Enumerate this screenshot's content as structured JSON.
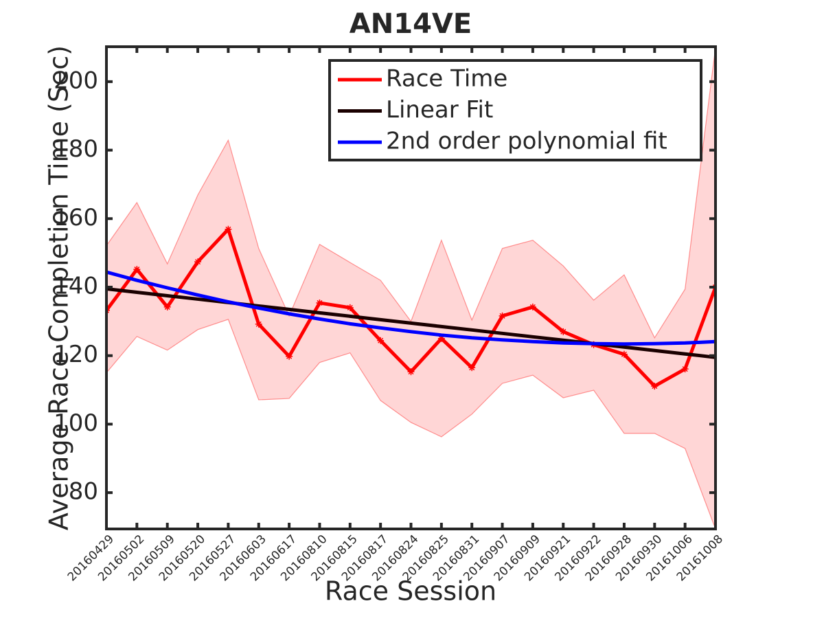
{
  "chart_data": {
    "type": "line",
    "title": "AN14VE",
    "x_label": "Race Session",
    "y_label": "Average Race Completion Time (Sec)",
    "categories": [
      "20160429",
      "20160502",
      "20160509",
      "20160520",
      "20160527",
      "20160603",
      "20160617",
      "20160810",
      "20160815",
      "20160817",
      "20160824",
      "20160825",
      "20160831",
      "20160907",
      "20160909",
      "20160921",
      "20160922",
      "20160928",
      "20160930",
      "20161006",
      "20161008"
    ],
    "series": [
      {
        "name": "Race Time",
        "color": "#ff0000",
        "marker": "asterisk",
        "values": [
          133.2,
          145.2,
          134.2,
          147.4,
          156.9,
          129.2,
          119.8,
          135.4,
          134.0,
          124.4,
          115.3,
          125.0,
          116.5,
          131.6,
          134.2,
          127.0,
          123.2,
          120.4,
          111.1,
          116.1,
          140.0
        ]
      },
      {
        "name": "Linear Fit",
        "color": "#1a0000",
        "values": [
          139.5,
          138.5,
          137.5,
          136.5,
          135.5,
          134.5,
          133.5,
          132.5,
          131.5,
          130.5,
          129.5,
          128.5,
          127.5,
          126.5,
          125.5,
          124.5,
          123.5,
          122.5,
          121.5,
          120.5,
          119.5
        ]
      },
      {
        "name": "2nd order polynomial fit",
        "color": "#0000ff",
        "values": [
          144.4,
          142.0,
          139.8,
          137.7,
          135.7,
          133.9,
          132.2,
          130.7,
          129.3,
          128.1,
          127.0,
          126.0,
          125.2,
          124.6,
          124.1,
          123.7,
          123.5,
          123.4,
          123.5,
          123.7,
          124.1
        ]
      }
    ],
    "band": {
      "color": "#ff0000",
      "upper": [
        152.1,
        164.7,
        146.8,
        166.9,
        182.9,
        151.3,
        131.6,
        152.5,
        147.2,
        142.0,
        130.0,
        153.7,
        130.4,
        151.3,
        153.7,
        146.2,
        136.2,
        143.6,
        125.2,
        139.4,
        210.0
      ],
      "lower": [
        115.0,
        125.6,
        121.6,
        127.6,
        130.6,
        107.1,
        107.5,
        118.0,
        120.8,
        106.9,
        100.5,
        96.3,
        102.9,
        111.9,
        114.3,
        107.7,
        109.9,
        97.3,
        97.3,
        92.9,
        69.4
      ]
    },
    "ylim": [
      69.4,
      210.2
    ],
    "yticks": [
      80,
      100,
      120,
      140,
      160,
      180,
      200
    ],
    "legend": "top-right"
  }
}
